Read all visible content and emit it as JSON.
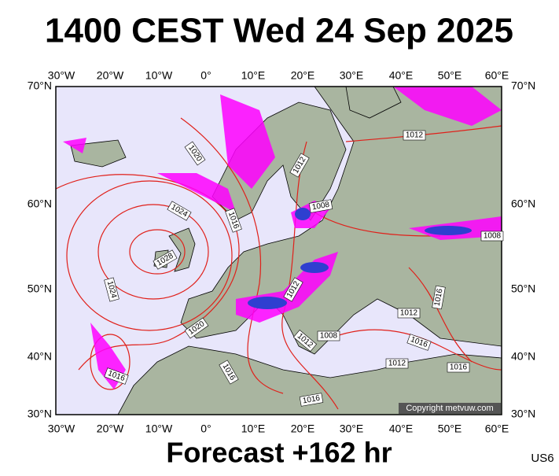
{
  "header": {
    "title": "1400 CEST Wed 24 Sep 2025"
  },
  "map": {
    "lon_labels": [
      "30°W",
      "20°W",
      "10°W",
      "0°",
      "10°E",
      "20°E",
      "30°E",
      "40°E",
      "50°E",
      "60°E"
    ],
    "lat_labels": [
      "70°N",
      "60°N",
      "50°N",
      "40°N",
      "30°N"
    ],
    "isobar_labels": [
      "1020",
      "1024",
      "1028",
      "1024",
      "1016",
      "1020",
      "1016",
      "1016",
      "1012",
      "1008",
      "1012",
      "1012",
      "1008",
      "1012",
      "1016",
      "1016",
      "1012",
      "1016",
      "1008",
      "1012",
      "1016"
    ],
    "copyright": "Copyright metvuw.com"
  },
  "footer": {
    "forecast": "Forecast +162 hr",
    "code": "US6"
  }
}
